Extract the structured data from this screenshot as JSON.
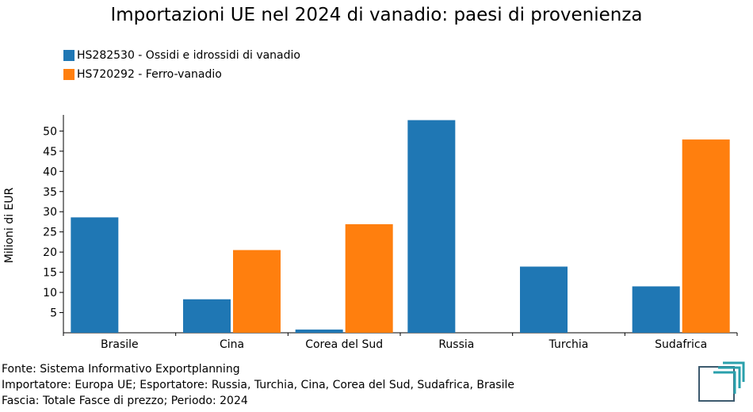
{
  "title": "Importazioni UE nel 2024 di vanadio: paesi di provenienza",
  "legend": [
    {
      "label": "HS282530 - Ossidi e idrossidi di vanadio",
      "color": "#1f77b4"
    },
    {
      "label": "HS720292 - Ferro-vanadio",
      "color": "#ff7f0e"
    }
  ],
  "footer": {
    "source": "Fonte: Sistema Informativo Exportplanning",
    "importer": "Importatore: Europa UE; Esportatore: Russia, Turchia, Cina, Corea del Sud, Sudafrica, Brasile",
    "range": "Fascia: Totale Fasce di prezzo; Periodo: 2024"
  },
  "logo_icon": "exportplanning-logo-icon",
  "chart_data": {
    "type": "bar",
    "title": "Importazioni UE nel 2024 di vanadio: paesi di provenienza",
    "xlabel": "",
    "ylabel": "Milioni di EUR",
    "categories": [
      "Brasile",
      "Cina",
      "Corea del Sud",
      "Russia",
      "Turchia",
      "Sudafrica"
    ],
    "series": [
      {
        "name": "HS282530 - Ossidi e idrossidi di vanadio",
        "color": "#1f77b4",
        "values": [
          28.6,
          8.3,
          0.8,
          52.7,
          16.4,
          11.5
        ]
      },
      {
        "name": "HS720292 - Ferro-vanadio",
        "color": "#ff7f0e",
        "values": [
          0,
          20.5,
          26.9,
          0,
          0,
          47.9
        ]
      }
    ],
    "ylim": [
      0,
      54
    ],
    "yticks": [
      5,
      10,
      15,
      20,
      25,
      30,
      35,
      40,
      45,
      50
    ],
    "grid": false,
    "legend_position": "top-left"
  }
}
